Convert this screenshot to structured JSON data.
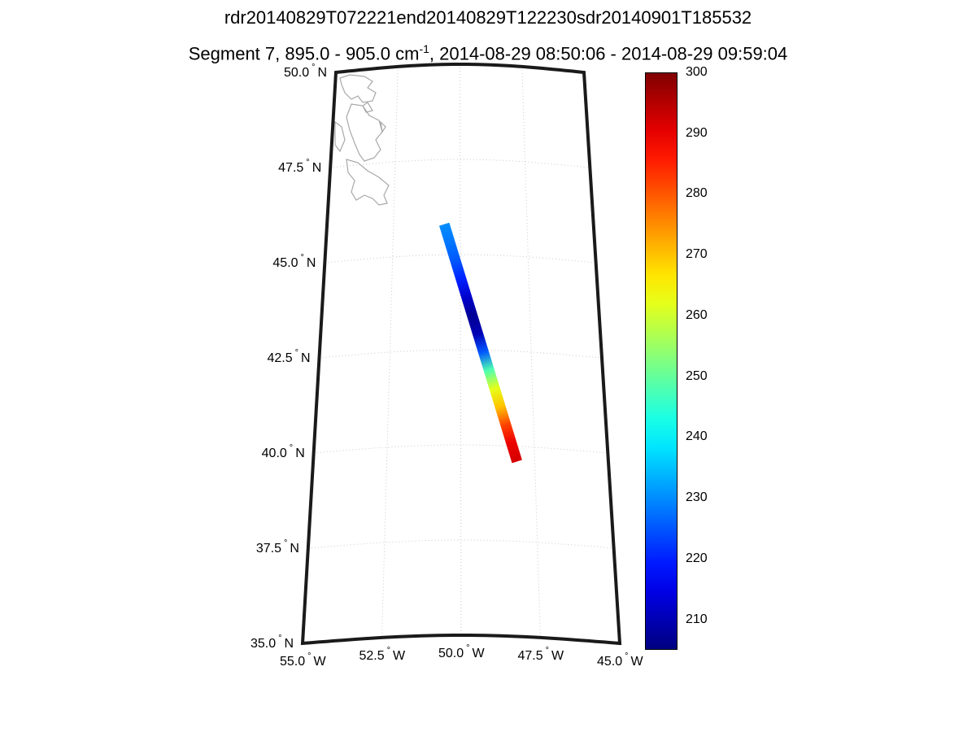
{
  "titles": {
    "line1": "rdr20140829T072221end20140829T122230sdr20140901T185532",
    "line2_prefix": "Segment 7, 895.0 - 905.0 cm",
    "line2_superscript": "-1",
    "line2_suffix": ", 2014-08-29 08:50:06 - 2014-08-29 09:59:04"
  },
  "map": {
    "projection": "conic",
    "lat_range": [
      35.0,
      50.0
    ],
    "lon_range": [
      -55.0,
      -45.0
    ],
    "gridlines": "dotted",
    "lat_labels": [
      {
        "value": "50.0",
        "hemi": "N"
      },
      {
        "value": "47.5",
        "hemi": "N"
      },
      {
        "value": "45.0",
        "hemi": "N"
      },
      {
        "value": "42.5",
        "hemi": "N"
      },
      {
        "value": "40.0",
        "hemi": "N"
      },
      {
        "value": "37.5",
        "hemi": "N"
      },
      {
        "value": "35.0",
        "hemi": "N"
      }
    ],
    "lon_labels": [
      {
        "value": "55.0",
        "hemi": "W"
      },
      {
        "value": "52.5",
        "hemi": "W"
      },
      {
        "value": "50.0",
        "hemi": "W"
      },
      {
        "value": "47.5",
        "hemi": "W"
      },
      {
        "value": "45.0",
        "hemi": "W"
      }
    ],
    "coastline_color": "#a8a8a8",
    "swath": {
      "start": {
        "lat": 45.8,
        "lon": -50.6
      },
      "end": {
        "lat": 39.6,
        "lon": -48.1
      },
      "temperature_profile": [
        230,
        228,
        225,
        220,
        212,
        207,
        210,
        225,
        248,
        262,
        270,
        282,
        290,
        292
      ]
    }
  },
  "colorbar": {
    "min": 205,
    "max": 300,
    "colormap": "jet",
    "ticks": [
      "300",
      "290",
      "280",
      "270",
      "260",
      "250",
      "240",
      "230",
      "220",
      "210"
    ]
  }
}
